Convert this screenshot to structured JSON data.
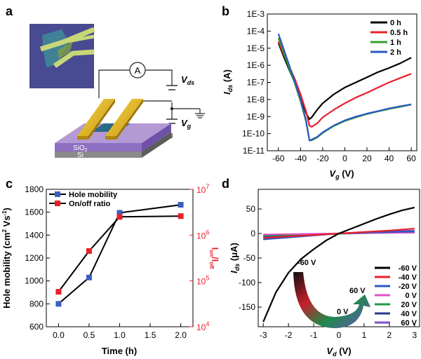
{
  "panel_labels": {
    "a": "a",
    "b": "b",
    "c": "c",
    "d": "d"
  },
  "schematic": {
    "ammeter": "A",
    "vds_main": "V",
    "vds_sub": "ds",
    "vg_main": "V",
    "vg_sub": "g",
    "sio2_main": "SiO",
    "sio2_sub": "2",
    "si": "Si"
  },
  "chart_data": [
    {
      "id": "b",
      "type": "line",
      "yscale": "log",
      "xlabel": "V",
      "xlabel_sub": "g",
      "xunit": "(V)",
      "ylabel": "I",
      "ylabel_sub": "ds",
      "yunit": "(A)",
      "xlim": [
        -70,
        65
      ],
      "ylim_exp": [
        -11,
        -3
      ],
      "xticks": [
        -60,
        -40,
        -20,
        0,
        20,
        40,
        60
      ],
      "yticks": [
        "1E-11",
        "1E-10",
        "1E-9",
        "1E-8",
        "1E-7",
        "1E-6",
        "1E-5",
        "1E-4",
        "1E-3"
      ],
      "series": [
        {
          "name": "0 h",
          "color": "#000000",
          "x": [
            -60,
            -55,
            -50,
            -45,
            -40,
            -35,
            -32,
            -30,
            -25,
            -20,
            -10,
            0,
            10,
            20,
            30,
            40,
            50,
            60
          ],
          "y": [
            2e-05,
            3e-06,
            5e-07,
            9e-08,
            1.3e-08,
            1.6e-09,
            7e-10,
            9e-10,
            2.5e-09,
            6e-09,
            2e-08,
            5e-08,
            1e-07,
            2e-07,
            4e-07,
            7e-07,
            1.3e-06,
            2.8e-06
          ]
        },
        {
          "name": "0.5 h",
          "color": "#e8202a",
          "x": [
            -60,
            -55,
            -50,
            -45,
            -40,
            -35,
            -32,
            -30,
            -25,
            -20,
            -10,
            0,
            10,
            20,
            30,
            40,
            50,
            60
          ],
          "y": [
            2.5e-05,
            4e-06,
            8e-07,
            1.5e-07,
            2e-08,
            2e-09,
            3e-10,
            2.5e-10,
            4e-10,
            9e-10,
            2.5e-09,
            6e-09,
            1.3e-08,
            2.5e-08,
            5e-08,
            1e-07,
            1.8e-07,
            3.2e-07
          ]
        },
        {
          "name": "1 h",
          "color": "#33a02c",
          "x": [
            -60,
            -55,
            -50,
            -45,
            -40,
            -35,
            -32,
            -30,
            -25,
            -20,
            -10,
            0,
            10,
            20,
            30,
            40,
            50,
            60
          ],
          "y": [
            4e-05,
            5e-06,
            6e-07,
            8e-08,
            8e-09,
            5e-10,
            4e-11,
            4e-11,
            6e-11,
            1.1e-10,
            2.8e-10,
            5.5e-10,
            9e-10,
            1.4e-09,
            2e-09,
            2.8e-09,
            3.7e-09,
            5e-09
          ]
        },
        {
          "name": "2 h",
          "color": "#2b57c4",
          "x": [
            -60,
            -55,
            -50,
            -45,
            -40,
            -35,
            -32,
            -30,
            -25,
            -20,
            -10,
            0,
            10,
            20,
            30,
            40,
            50,
            60
          ],
          "y": [
            7e-05,
            8e-06,
            9e-07,
            1e-07,
            1e-08,
            6e-10,
            4e-11,
            4.5e-11,
            6.5e-11,
            1.2e-10,
            3e-10,
            6e-10,
            1e-09,
            1.5e-09,
            2.1e-09,
            3e-09,
            4e-09,
            5.2e-09
          ]
        }
      ]
    },
    {
      "id": "c",
      "type": "line",
      "xlabel": "Time (h)",
      "ylabel": "Hole mobility (cm² Vs⁻¹)",
      "ylabel_parts": {
        "main": "Hole mobility (cm",
        "sup1": "2",
        "mid": " Vs",
        "sup2": "-1",
        "end": ")"
      },
      "y2label_main": "I",
      "y2label_sub": "on",
      "y2label_mid": "/I",
      "y2label_sub2": "off",
      "xlim": [
        -0.2,
        2.2
      ],
      "ylim": [
        600,
        1800
      ],
      "y2lim_exp": [
        4,
        7
      ],
      "xticks": [
        "0.0",
        "0.5",
        "1.0",
        "1.5",
        "2.0"
      ],
      "yticks": [
        600,
        800,
        1000,
        1200,
        1400,
        1600,
        1800
      ],
      "y2ticks": [
        {
          "base": "10",
          "exp": "4"
        },
        {
          "base": "10",
          "exp": "5"
        },
        {
          "base": "10",
          "exp": "6"
        },
        {
          "base": "10",
          "exp": "7"
        }
      ],
      "series": [
        {
          "name": "Hole mobility",
          "color": "#3b5fc0",
          "x": [
            0,
            0.5,
            1.0,
            2.0
          ],
          "y": [
            800,
            1030,
            1595,
            1665
          ]
        },
        {
          "name": "On/off ratio",
          "color": "#e8202a",
          "axis": "right",
          "x": [
            0,
            0.5,
            1.0,
            2.0
          ],
          "y": [
            58000,
            450000,
            2500000,
            2600000
          ]
        }
      ]
    },
    {
      "id": "d",
      "type": "line",
      "xlabel": "V",
      "xlabel_sub": "d",
      "xunit": "(V)",
      "ylabel": "I",
      "ylabel_sub": "ds",
      "yunit": "(μA)",
      "xlim": [
        -3.2,
        3.2
      ],
      "ylim": [
        -190,
        90
      ],
      "xticks": [
        -3,
        -2,
        -1,
        0,
        1,
        2,
        3
      ],
      "yticks": [
        50,
        0,
        -50,
        -100,
        -150
      ],
      "arrow_start_label": "-60 V",
      "arrow_mid_label": "0 V",
      "arrow_end_label": "60 V",
      "series": [
        {
          "name": "-60 V",
          "color": "#000000",
          "x": [
            -3,
            -2.5,
            -2,
            -1.5,
            -1,
            -0.5,
            0,
            0.5,
            1,
            1.5,
            2,
            2.5,
            3
          ],
          "y": [
            -180,
            -120,
            -80,
            -52,
            -32,
            -14,
            0,
            10,
            20,
            30,
            39,
            47,
            53
          ]
        },
        {
          "name": "-40 V",
          "color": "#e8202a",
          "x": [
            -3,
            -2,
            -1,
            0,
            1,
            2,
            3
          ],
          "y": [
            -9,
            -6,
            -3,
            0,
            3,
            6,
            10
          ]
        },
        {
          "name": "-20 V",
          "color": "#2b57c4",
          "x": [
            -3,
            -2,
            -1,
            0,
            1,
            2,
            3
          ],
          "y": [
            -12,
            -8,
            -4,
            0,
            2,
            3,
            4
          ]
        },
        {
          "name": "0 V",
          "color": "#e050c8",
          "x": [
            -3,
            3
          ],
          "y": [
            -2,
            2
          ]
        },
        {
          "name": "20 V",
          "color": "#1f9a4a",
          "x": [
            -3,
            -1.5,
            0,
            1.5,
            3
          ],
          "y": [
            -4,
            -2.5,
            -0.5,
            1,
            2
          ]
        },
        {
          "name": "40 V",
          "color": "#283a8a",
          "x": [
            -3,
            -1.5,
            0,
            1.5,
            3
          ],
          "y": [
            -5,
            -3,
            0,
            2,
            3
          ]
        },
        {
          "name": "60 V",
          "color": "#7b4fc4",
          "x": [
            -3,
            -1.5,
            0,
            1.5,
            3
          ],
          "y": [
            -7,
            -3.5,
            0,
            3,
            6
          ]
        }
      ]
    }
  ]
}
